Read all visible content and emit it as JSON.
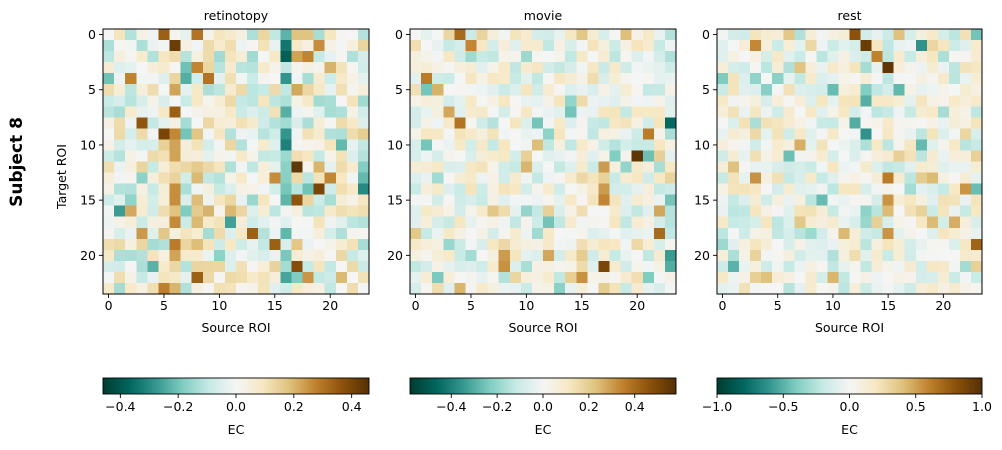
{
  "figure": {
    "row_label": "Subject 8"
  },
  "chart_data": [
    {
      "type": "heatmap",
      "title": "retinotopy",
      "xlabel": "Source ROI",
      "ylabel": "Target ROI",
      "n": 24,
      "x_ticks": [
        0,
        5,
        10,
        15,
        20
      ],
      "y_ticks": [
        0,
        5,
        10,
        15,
        20
      ],
      "colorbar": {
        "label": "EC",
        "vmin": -0.46,
        "vmax": 0.46,
        "ticks": [
          -0.4,
          -0.2,
          0.0,
          0.2,
          0.4
        ],
        "tick_labels": [
          "−0.4",
          "−0.2",
          "0.0",
          "0.2",
          "0.4"
        ]
      },
      "seed": 11,
      "noise_scale": 0.14,
      "column_bias": [
        [
          6,
          0.2
        ],
        [
          8,
          0.14
        ],
        [
          17,
          0.16
        ],
        [
          16,
          -0.22
        ],
        [
          5,
          0.06
        ]
      ],
      "strong_cells": [
        [
          0,
          5,
          0.34
        ],
        [
          1,
          6,
          0.42
        ],
        [
          0,
          8,
          0.3
        ],
        [
          3,
          8,
          0.27
        ],
        [
          4,
          9,
          0.3
        ],
        [
          7,
          6,
          0.34
        ],
        [
          8,
          3,
          0.36
        ],
        [
          9,
          5,
          0.4
        ],
        [
          12,
          17,
          0.44
        ],
        [
          14,
          19,
          0.4
        ],
        [
          15,
          17,
          0.36
        ],
        [
          17,
          11,
          -0.26
        ],
        [
          18,
          13,
          0.34
        ],
        [
          19,
          15,
          0.34
        ],
        [
          21,
          17,
          0.38
        ],
        [
          22,
          8,
          0.34
        ],
        [
          23,
          5,
          0.28
        ],
        [
          14,
          23,
          -0.3
        ],
        [
          13,
          15,
          0.26
        ],
        [
          16,
          2,
          0.22
        ]
      ]
    },
    {
      "type": "heatmap",
      "title": "movie",
      "xlabel": "Source ROI",
      "ylabel": "",
      "n": 24,
      "x_ticks": [
        0,
        5,
        10,
        15,
        20
      ],
      "y_ticks": [
        0,
        5,
        10,
        15,
        20
      ],
      "colorbar": {
        "label": "EC",
        "vmin": -0.58,
        "vmax": 0.58,
        "ticks": [
          -0.4,
          -0.2,
          0.0,
          0.2,
          0.4
        ],
        "tick_labels": [
          "−0.4",
          "−0.2",
          "0.0",
          "0.2",
          "0.4"
        ]
      },
      "seed": 23,
      "noise_scale": 0.13,
      "column_bias": [
        [
          15,
          0.1
        ],
        [
          23,
          -0.06
        ]
      ],
      "strong_cells": [
        [
          0,
          4,
          0.4
        ],
        [
          1,
          5,
          0.34
        ],
        [
          4,
          1,
          0.36
        ],
        [
          5,
          2,
          0.26
        ],
        [
          7,
          3,
          0.28
        ],
        [
          8,
          4,
          0.38
        ],
        [
          8,
          23,
          -0.46
        ],
        [
          9,
          21,
          0.36
        ],
        [
          11,
          20,
          0.56
        ],
        [
          11,
          21,
          -0.26
        ],
        [
          12,
          17,
          0.3
        ],
        [
          14,
          17,
          0.3
        ],
        [
          15,
          17,
          0.34
        ],
        [
          16,
          22,
          0.28
        ],
        [
          18,
          22,
          0.4
        ],
        [
          20,
          8,
          0.3
        ],
        [
          20,
          23,
          -0.34
        ],
        [
          21,
          17,
          0.5
        ],
        [
          21,
          8,
          0.32
        ],
        [
          22,
          15,
          0.32
        ],
        [
          23,
          17,
          0.2
        ],
        [
          20,
          12,
          0.28
        ]
      ]
    },
    {
      "type": "heatmap",
      "title": "rest",
      "xlabel": "Source ROI",
      "ylabel": "",
      "n": 24,
      "x_ticks": [
        0,
        5,
        10,
        15,
        20
      ],
      "y_ticks": [
        0,
        5,
        10,
        15,
        20
      ],
      "colorbar": {
        "label": "EC",
        "vmin": -1.0,
        "vmax": 1.0,
        "ticks": [
          -1.0,
          -0.5,
          0.0,
          0.5,
          1.0
        ],
        "tick_labels": [
          "−1.0",
          "−0.5",
          "0.0",
          "0.5",
          "1.0"
        ]
      },
      "seed": 37,
      "noise_scale": 0.24,
      "column_bias": [
        [
          13,
          -0.16
        ],
        [
          3,
          0.1
        ]
      ],
      "strong_cells": [
        [
          0,
          12,
          0.8
        ],
        [
          1,
          13,
          0.92
        ],
        [
          1,
          18,
          -0.62
        ],
        [
          2,
          14,
          0.6
        ],
        [
          3,
          15,
          0.96
        ],
        [
          1,
          3,
          0.58
        ],
        [
          9,
          13,
          -0.62
        ],
        [
          8,
          12,
          -0.52
        ],
        [
          10,
          7,
          0.46
        ],
        [
          12,
          1,
          0.4
        ],
        [
          13,
          15,
          0.62
        ],
        [
          15,
          15,
          0.54
        ],
        [
          16,
          15,
          0.42
        ],
        [
          18,
          15,
          0.54
        ],
        [
          19,
          23,
          0.72
        ],
        [
          22,
          4,
          0.4
        ],
        [
          21,
          1,
          -0.5
        ],
        [
          14,
          22,
          0.54
        ],
        [
          17,
          14,
          0.32
        ],
        [
          22,
          10,
          0.44
        ]
      ]
    }
  ]
}
